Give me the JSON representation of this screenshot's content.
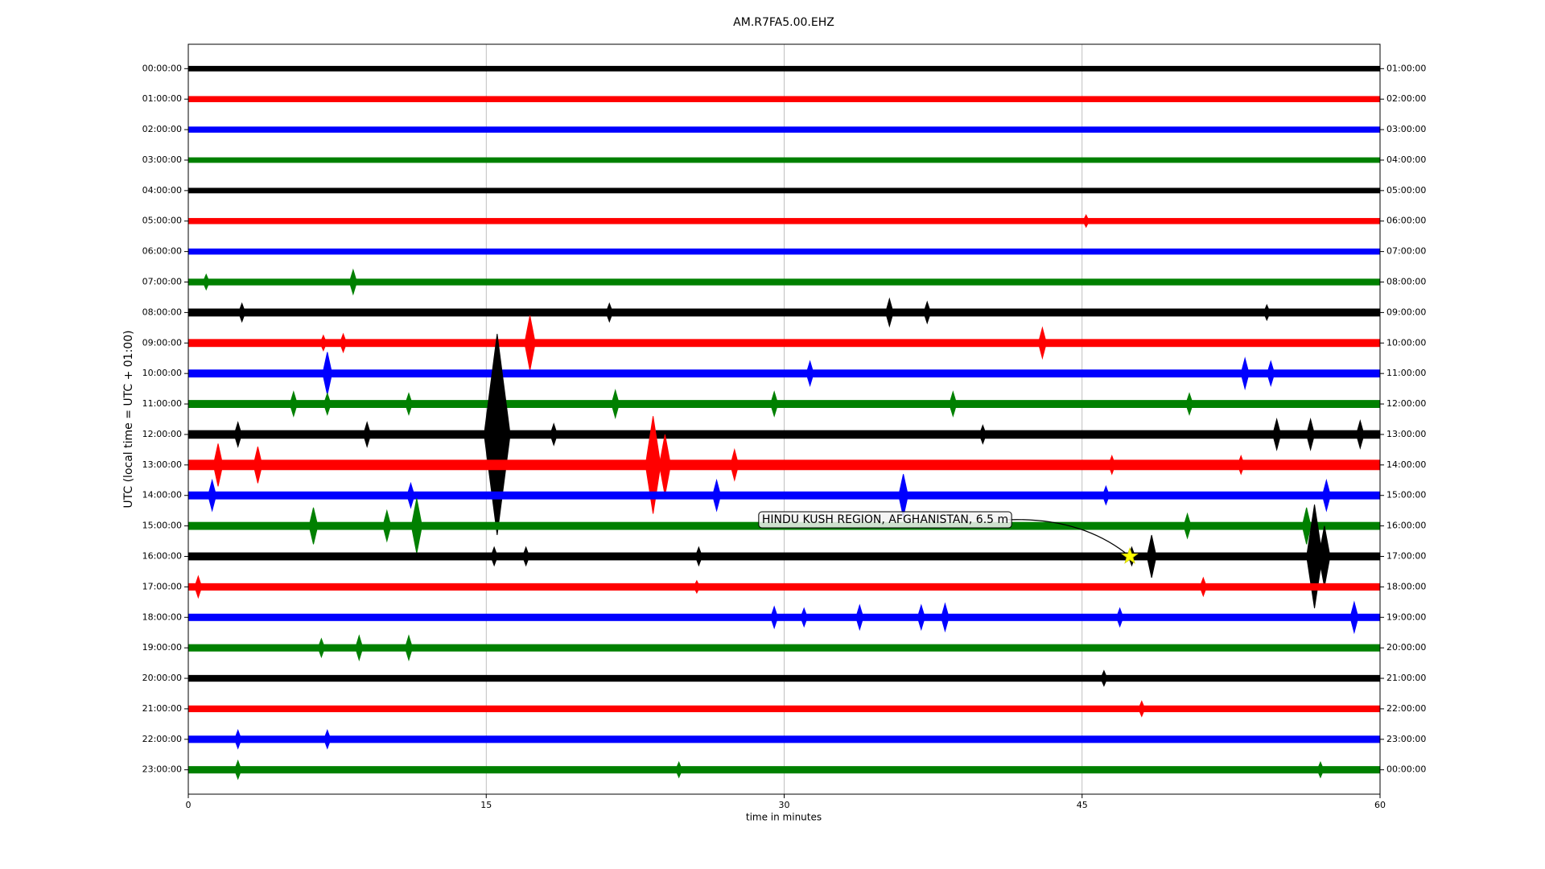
{
  "chart_data": {
    "type": "dayplot",
    "title": "AM.R7FA5.00.EHZ",
    "xlabel": "time in minutes",
    "ylabel": "UTC (local time = UTC + 01:00)",
    "xlim": [
      0,
      60
    ],
    "xticks": [
      0,
      15,
      30,
      45,
      60
    ],
    "grid": true,
    "colors": [
      "#000000",
      "#ff0000",
      "#0000ff",
      "#008000"
    ],
    "rows": [
      {
        "left": "00:00:00",
        "right": "01:00:00",
        "noise": 0.09,
        "events": []
      },
      {
        "left": "01:00:00",
        "right": "02:00:00",
        "noise": 0.1,
        "events": []
      },
      {
        "left": "02:00:00",
        "right": "03:00:00",
        "noise": 0.1,
        "events": []
      },
      {
        "left": "03:00:00",
        "right": "04:00:00",
        "noise": 0.09,
        "events": []
      },
      {
        "left": "04:00:00",
        "right": "05:00:00",
        "noise": 0.09,
        "events": []
      },
      {
        "left": "05:00:00",
        "right": "06:00:00",
        "noise": 0.1,
        "events": [
          [
            45.2,
            0.2
          ]
        ]
      },
      {
        "left": "06:00:00",
        "right": "07:00:00",
        "noise": 0.1,
        "events": []
      },
      {
        "left": "07:00:00",
        "right": "08:00:00",
        "noise": 0.11,
        "events": [
          [
            0.9,
            0.25
          ],
          [
            8.3,
            0.4
          ]
        ]
      },
      {
        "left": "08:00:00",
        "right": "09:00:00",
        "noise": 0.13,
        "events": [
          [
            2.7,
            0.3
          ],
          [
            21.2,
            0.3
          ],
          [
            35.3,
            0.45
          ],
          [
            37.2,
            0.35
          ],
          [
            54.3,
            0.25
          ]
        ]
      },
      {
        "left": "09:00:00",
        "right": "10:00:00",
        "noise": 0.13,
        "events": [
          [
            6.8,
            0.25
          ],
          [
            7.8,
            0.3
          ],
          [
            17.2,
            0.9
          ],
          [
            43,
            0.5
          ]
        ]
      },
      {
        "left": "10:00:00",
        "right": "11:00:00",
        "noise": 0.13,
        "events": [
          [
            7,
            0.7
          ],
          [
            31.3,
            0.4
          ],
          [
            53.2,
            0.5
          ],
          [
            54.5,
            0.4
          ]
        ]
      },
      {
        "left": "11:00:00",
        "right": "12:00:00",
        "noise": 0.13,
        "events": [
          [
            5.3,
            0.4
          ],
          [
            7,
            0.35
          ],
          [
            11.1,
            0.35
          ],
          [
            21.5,
            0.45
          ],
          [
            29.5,
            0.4
          ],
          [
            38.5,
            0.4
          ],
          [
            50.4,
            0.35
          ]
        ]
      },
      {
        "left": "12:00:00",
        "right": "13:00:00",
        "noise": 0.14,
        "events": [
          [
            2.5,
            0.4
          ],
          [
            9,
            0.4
          ],
          [
            15.55,
            3.3
          ],
          [
            18.4,
            0.35
          ],
          [
            40,
            0.3
          ],
          [
            54.8,
            0.5
          ],
          [
            56.5,
            0.5
          ],
          [
            59,
            0.45
          ]
        ]
      },
      {
        "left": "13:00:00",
        "right": "14:00:00",
        "noise": 0.17,
        "events": [
          [
            1.5,
            0.7
          ],
          [
            3.5,
            0.6
          ],
          [
            23.4,
            1.6
          ],
          [
            24,
            1
          ],
          [
            27.5,
            0.5
          ],
          [
            46.5,
            0.3
          ],
          [
            53,
            0.3
          ]
        ]
      },
      {
        "left": "14:00:00",
        "right": "15:00:00",
        "noise": 0.13,
        "events": [
          [
            1.2,
            0.5
          ],
          [
            11.2,
            0.4
          ],
          [
            26.6,
            0.5
          ],
          [
            36,
            0.7
          ],
          [
            46.2,
            0.3
          ],
          [
            57.3,
            0.5
          ]
        ]
      },
      {
        "left": "15:00:00",
        "right": "16:00:00",
        "noise": 0.13,
        "events": [
          [
            6.3,
            0.6
          ],
          [
            10,
            0.5
          ],
          [
            11.5,
            0.9
          ],
          [
            50.3,
            0.4
          ],
          [
            56.3,
            0.6
          ]
        ]
      },
      {
        "left": "16:00:00",
        "right": "17:00:00",
        "noise": 0.13,
        "events": [
          [
            15.4,
            0.3
          ],
          [
            17,
            0.3
          ],
          [
            25.7,
            0.3
          ],
          [
            47.5,
            0.3
          ],
          [
            48.5,
            0.7
          ],
          [
            56.7,
            1.7
          ],
          [
            57.2,
            1
          ]
        ]
      },
      {
        "left": "17:00:00",
        "right": "18:00:00",
        "noise": 0.12,
        "events": [
          [
            0.5,
            0.35
          ],
          [
            25.6,
            0.2
          ],
          [
            51.1,
            0.3
          ]
        ]
      },
      {
        "left": "18:00:00",
        "right": "19:00:00",
        "noise": 0.12,
        "events": [
          [
            29.5,
            0.35
          ],
          [
            31,
            0.3
          ],
          [
            33.8,
            0.4
          ],
          [
            36.9,
            0.4
          ],
          [
            38.1,
            0.45
          ],
          [
            46.9,
            0.3
          ],
          [
            58.7,
            0.5
          ]
        ]
      },
      {
        "left": "19:00:00",
        "right": "20:00:00",
        "noise": 0.12,
        "events": [
          [
            6.7,
            0.3
          ],
          [
            8.6,
            0.4
          ],
          [
            11.1,
            0.4
          ]
        ]
      },
      {
        "left": "20:00:00",
        "right": "21:00:00",
        "noise": 0.11,
        "events": [
          [
            46.1,
            0.25
          ]
        ]
      },
      {
        "left": "21:00:00",
        "right": "22:00:00",
        "noise": 0.11,
        "events": [
          [
            48,
            0.25
          ]
        ]
      },
      {
        "left": "22:00:00",
        "right": "23:00:00",
        "noise": 0.12,
        "events": [
          [
            2.5,
            0.3
          ],
          [
            7,
            0.3
          ]
        ]
      },
      {
        "left": "23:00:00",
        "right": "00:00:00",
        "noise": 0.12,
        "events": [
          [
            2.5,
            0.3
          ],
          [
            24.7,
            0.25
          ],
          [
            57,
            0.25
          ]
        ]
      }
    ],
    "annotation": {
      "text": "HINDU KUSH REGION, AFGHANISTAN, 6.5 m",
      "row": 16,
      "minute": 47.4
    }
  }
}
